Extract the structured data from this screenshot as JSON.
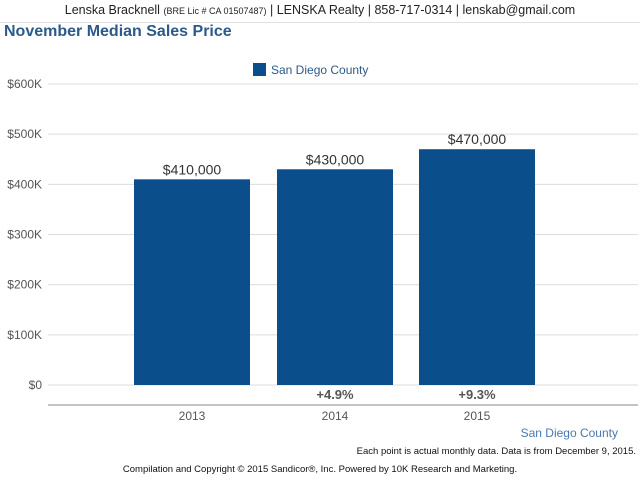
{
  "header": {
    "agent_name": "Lenska Bracknell",
    "license": "(BRE Lic # CA 01507487)",
    "contact": "| LENSKA Realty | 858-717-0314 | lenskab@gmail.com"
  },
  "chart_data": {
    "type": "bar",
    "title": "November Median Sales Price",
    "categories": [
      "2013",
      "2014",
      "2015"
    ],
    "series": [
      {
        "name": "San Diego County",
        "values": [
          410000,
          430000,
          470000
        ],
        "color": "#0a4f8c"
      }
    ],
    "data_labels": [
      "$410,000",
      "$430,000",
      "$470,000"
    ],
    "change_labels": [
      "",
      "+4.9%",
      "+9.3%"
    ],
    "y_ticks": [
      {
        "value": 0,
        "label": "$0"
      },
      {
        "value": 100000,
        "label": "$100K"
      },
      {
        "value": 200000,
        "label": "$200K"
      },
      {
        "value": 300000,
        "label": "$300K"
      },
      {
        "value": 400000,
        "label": "$400K"
      },
      {
        "value": 500000,
        "label": "$500K"
      },
      {
        "value": 600000,
        "label": "$600K"
      }
    ],
    "ylim": [
      0,
      600000
    ],
    "grid": true,
    "legend_position": "top-center"
  },
  "footer": {
    "region": "San Diego County",
    "note": "Each point is actual monthly data. Data is from December 9, 2015.",
    "copyright": "Compilation and Copyright © 2015 Sandicor®, Inc. Powered by 10K Research and Marketing."
  }
}
